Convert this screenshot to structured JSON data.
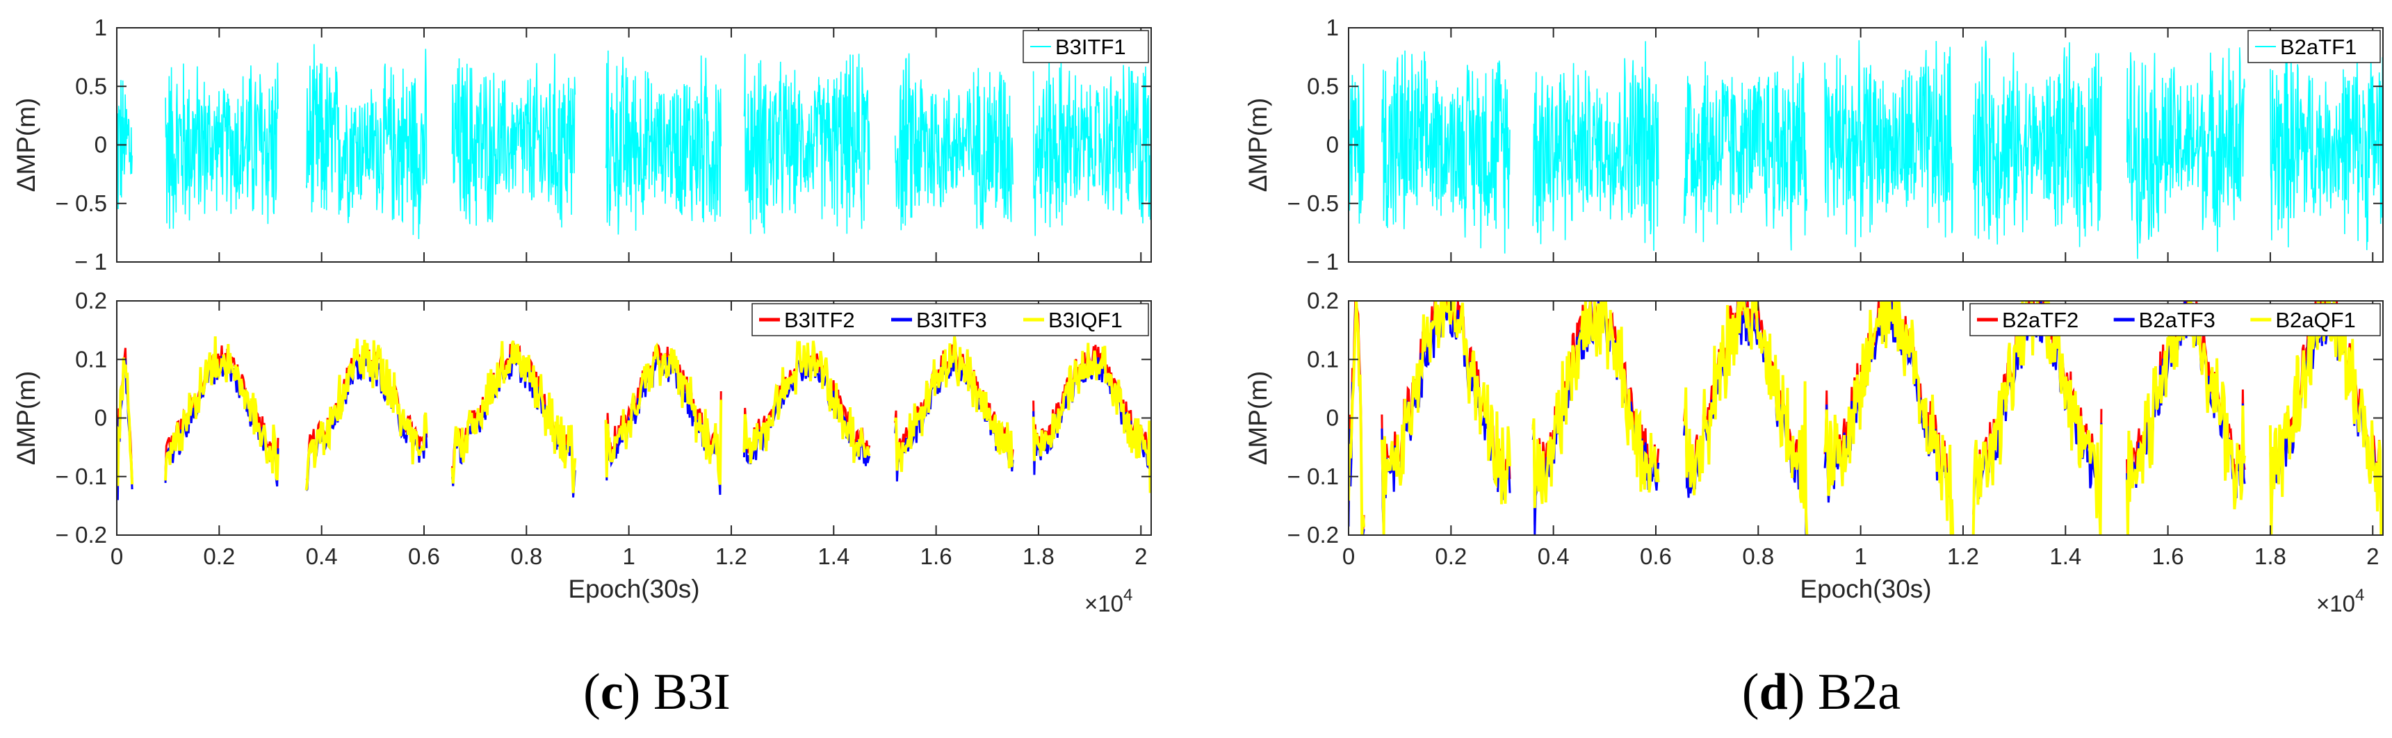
{
  "chart_data": [
    {
      "panel": "c",
      "type": "line",
      "title": "",
      "xlabel": "",
      "ylabel": "ΔMP(m)",
      "xlim": [
        0,
        20200
      ],
      "ylim": [
        -1,
        1
      ],
      "yticks": [
        "1",
        "0.5",
        "0",
        "− 0.5",
        "− 1"
      ],
      "series": [
        {
          "name": "B3ITF1",
          "color": "#00ffff",
          "amplitude": 0.9,
          "arcs": [
            [
              0,
              300
            ],
            [
              950,
              3150
            ],
            [
              3700,
              6050
            ],
            [
              6550,
              8950
            ],
            [
              9550,
              11800
            ],
            [
              12250,
              14700
            ],
            [
              15200,
              17500
            ],
            [
              17900,
              20200
            ]
          ]
        }
      ],
      "legend": [
        "B3ITF1"
      ],
      "legend_position": "top-right"
    },
    {
      "panel": "c",
      "type": "line",
      "title": "",
      "xlabel": "Epoch(30s)",
      "ylabel": "ΔMP(m)",
      "xlim": [
        0,
        20200
      ],
      "ylim": [
        -0.2,
        0.2
      ],
      "x_multiplier": "×10",
      "x_multiplier_exp": "4",
      "xticks": [
        "0",
        "0.2",
        "0.4",
        "0.6",
        "0.8",
        "1",
        "1.2",
        "1.4",
        "1.6",
        "1.8",
        "2"
      ],
      "yticks": [
        "0.2",
        "0.1",
        "0",
        "− 0.1",
        "− 0.2"
      ],
      "series": [
        {
          "name": "B3ITF2",
          "color": "#ff0000",
          "offset": 0.008
        },
        {
          "name": "B3ITF3",
          "color": "#0000ff",
          "offset": -0.01
        },
        {
          "name": "B3IQF1",
          "color": "#ffff00",
          "offset": 0
        }
      ],
      "arcs": [
        [
          0,
          300
        ],
        [
          950,
          3150
        ],
        [
          3700,
          6050
        ],
        [
          6550,
          8950
        ],
        [
          9550,
          11800
        ],
        [
          12250,
          14700
        ],
        [
          15200,
          17500
        ],
        [
          17900,
          20200
        ]
      ],
      "amplitude": 0.13,
      "legend": [
        "B3ITF2",
        "B3ITF3",
        "B3IQF1"
      ],
      "legend_position": "top-right"
    },
    {
      "panel": "d",
      "type": "line",
      "title": "",
      "xlabel": "",
      "ylabel": "ΔMP(m)",
      "xlim": [
        0,
        20200
      ],
      "ylim": [
        -1,
        1
      ],
      "yticks": [
        "1",
        "0.5",
        "0",
        "− 0.5",
        "− 1"
      ],
      "series": [
        {
          "name": "B2aTF1",
          "color": "#00ffff",
          "amplitude": 1.0,
          "arcs": [
            [
              0,
              300
            ],
            [
              650,
              3150
            ],
            [
              3600,
              6050
            ],
            [
              6550,
              8950
            ],
            [
              9300,
              11800
            ],
            [
              12200,
              14700
            ],
            [
              15200,
              17500
            ],
            [
              18000,
              20200
            ]
          ]
        }
      ],
      "legend": [
        "B2aTF1"
      ],
      "legend_position": "top-right"
    },
    {
      "panel": "d",
      "type": "line",
      "title": "",
      "xlabel": "Epoch(30s)",
      "ylabel": "ΔMP(m)",
      "xlim": [
        0,
        20200
      ],
      "ylim": [
        -0.2,
        0.2
      ],
      "x_multiplier": "×10",
      "x_multiplier_exp": "4",
      "xticks": [
        "0",
        "0.2",
        "0.4",
        "0.6",
        "0.8",
        "1",
        "1.2",
        "1.4",
        "1.6",
        "1.8",
        "2"
      ],
      "yticks": [
        "0.2",
        "0.1",
        "0",
        "− 0.1",
        "− 0.2"
      ],
      "series": [
        {
          "name": "B2aTF2",
          "color": "#ff0000",
          "offset": 0.012
        },
        {
          "name": "B2aTF3",
          "color": "#0000ff",
          "offset": -0.012
        },
        {
          "name": "B2aQF1",
          "color": "#ffff00",
          "offset": 0
        }
      ],
      "arcs": [
        [
          0,
          300
        ],
        [
          650,
          3150
        ],
        [
          3600,
          6050
        ],
        [
          6550,
          8950
        ],
        [
          9300,
          11800
        ],
        [
          12200,
          14700
        ],
        [
          15200,
          17500
        ],
        [
          18000,
          20200
        ]
      ],
      "amplitude": 0.24,
      "legend": [
        "B2aTF2",
        "B2aTF3",
        "B2aQF1"
      ],
      "legend_position": "top-right"
    }
  ],
  "captions": {
    "c": {
      "label": "c",
      "text": "B3I"
    },
    "d": {
      "label": "d",
      "text": "B2a"
    }
  }
}
